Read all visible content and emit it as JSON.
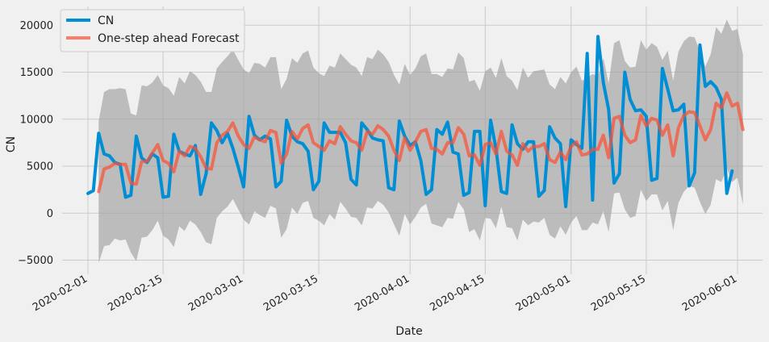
{
  "chart_data": {
    "type": "line",
    "title": "",
    "xlabel": "Date",
    "ylabel": "CN",
    "x_start": "2020-02-01",
    "xlim": [
      "2020-02-01",
      "2020-06-01"
    ],
    "ylim": [
      -6500,
      22000
    ],
    "x_ticks": [
      "2020-02-01",
      "2020-02-15",
      "2020-03-01",
      "2020-03-15",
      "2020-04-01",
      "2020-04-15",
      "2020-05-01",
      "2020-05-15",
      "2020-06-01"
    ],
    "y_ticks": [
      -5000,
      0,
      5000,
      10000,
      15000,
      20000
    ],
    "y_tick_labels": [
      "−5000",
      "0",
      "5000",
      "10000",
      "15000",
      "20000"
    ],
    "grid": true,
    "legend_position": "upper-left",
    "colors": {
      "actual": "#008fd5",
      "forecast": "#fc4f30",
      "band": "#a0a0a0"
    },
    "series": [
      {
        "name": "CN",
        "values": [
          2100,
          2400,
          8500,
          6300,
          6100,
          5400,
          5200,
          1700,
          1900,
          8200,
          5900,
          5400,
          6300,
          5900,
          1700,
          1800,
          8400,
          6600,
          6300,
          6100,
          7200,
          2000,
          4200,
          9600,
          8800,
          7500,
          8500,
          6900,
          4900,
          2800,
          10300,
          8300,
          7800,
          8200,
          7900,
          2800,
          3400,
          9900,
          8200,
          7600,
          7400,
          6600,
          2500,
          3400,
          9600,
          8600,
          8600,
          8600,
          7500,
          3600,
          3000,
          9600,
          8900,
          8000,
          7800,
          7700,
          2700,
          2500,
          9800,
          8200,
          7200,
          7600,
          5600,
          2000,
          2500,
          8900,
          8400,
          9700,
          6500,
          6300,
          1900,
          2200,
          8700,
          8700,
          800,
          9900,
          6900,
          2300,
          2100,
          9400,
          7400,
          6800,
          7600,
          7600,
          1800,
          2400,
          9200,
          8000,
          7400,
          700,
          7800,
          7300,
          6900,
          17000,
          1400,
          18800,
          13900,
          11000,
          3200,
          4200,
          15000,
          12100,
          10900,
          11000,
          10300,
          3500,
          3700,
          15400,
          13200,
          10900,
          11000,
          11600,
          2900,
          4300,
          17900,
          13500,
          14000,
          13400,
          12100,
          2100,
          4500
        ]
      },
      {
        "name": "One-step ahead Forecast",
        "values": [
          null,
          null,
          2300,
          4700,
          4900,
          5300,
          5200,
          5200,
          3200,
          3100,
          5500,
          5500,
          6400,
          7300,
          5600,
          5300,
          4400,
          6600,
          6100,
          7100,
          6900,
          6000,
          4800,
          4700,
          7500,
          8300,
          8700,
          9600,
          8200,
          7300,
          6900,
          8100,
          7800,
          7600,
          8800,
          8600,
          5300,
          6300,
          8700,
          7900,
          9000,
          9400,
          7500,
          7100,
          6700,
          7700,
          7400,
          9200,
          8400,
          7700,
          7500,
          6700,
          8700,
          8400,
          9300,
          8900,
          8200,
          6700,
          5600,
          8000,
          6700,
          7600,
          8700,
          8900,
          6900,
          6800,
          6300,
          7500,
          7500,
          9100,
          8400,
          6100,
          6200,
          5100,
          7300,
          7500,
          6300,
          8700,
          6600,
          6200,
          5100,
          7400,
          6600,
          7100,
          7100,
          7400,
          5700,
          5400,
          6500,
          5700,
          7100,
          7600,
          6200,
          6300,
          6800,
          6800,
          8300,
          5900,
          10100,
          10300,
          8300,
          7500,
          7800,
          10400,
          9300,
          10100,
          9900,
          8300,
          9400,
          6100,
          9100,
          10400,
          10800,
          10700,
          9300,
          7800,
          8900,
          11700,
          11200,
          12800,
          11400,
          11700,
          8900
        ]
      }
    ],
    "band": {
      "name": "forecast interval",
      "offset_up": [
        null,
        null,
        7500,
        8200,
        8300,
        7900,
        8100,
        8000,
        7400,
        7300,
        8100,
        8000,
        7500,
        7400,
        8000,
        8000,
        8100,
        7900,
        7700,
        8000,
        7800,
        8000,
        8100,
        8200,
        7900,
        7800,
        8000,
        7800,
        8100,
        8000,
        8000,
        7900,
        8100,
        7900,
        7800,
        8000,
        7900,
        8000,
        7800,
        8100,
        8000,
        7900,
        8000,
        7800,
        7900,
        8000,
        8100,
        7800,
        8000,
        8100,
        8000,
        7900,
        7900,
        8000,
        8100,
        8000,
        7900,
        8000,
        8100,
        7900,
        8000,
        7800,
        8000,
        8100,
        7900,
        8000,
        8200,
        7900,
        7800,
        8000,
        8100,
        7900,
        8000,
        7900,
        7800,
        8000,
        8100,
        7800,
        8000,
        7900,
        8000,
        8100,
        7800,
        8000,
        8100,
        7900,
        8000,
        7800,
        8000,
        8100,
        7900,
        8000,
        7900,
        8100,
        8000,
        7800,
        8200,
        7900,
        8000,
        8100,
        7900,
        8000,
        7800,
        8000,
        8100,
        8000,
        7800,
        8000,
        7900,
        8000,
        8100,
        7900,
        8000,
        8000,
        7900,
        7800,
        8000,
        8100,
        7900,
        7800,
        8000,
        7900,
        8000
      ],
      "offset_down": [
        null,
        null,
        7600,
        8200,
        8300,
        8000,
        8100,
        8000,
        7400,
        8200,
        8100,
        8000,
        8200,
        8100,
        8000,
        8100,
        8000,
        8000,
        8000,
        7900,
        8100,
        8000,
        7900,
        8000,
        8000,
        8100,
        8000,
        8100,
        7800,
        8000,
        8100,
        7900,
        8000,
        8100,
        8000,
        8100,
        7900,
        8000,
        8100,
        8000,
        7900,
        8100,
        8000,
        7900,
        8000,
        7800,
        8100,
        8000,
        7900,
        8100,
        8000,
        8000,
        8100,
        7900,
        8000,
        8000,
        8100,
        7900,
        8000,
        8100,
        7900,
        8000,
        8100,
        7900,
        8000,
        8100,
        7800,
        8000,
        8100,
        7900,
        8000,
        8100,
        7900,
        8000,
        7800,
        8100,
        7900,
        8000,
        8100,
        7800,
        8000,
        8100,
        7900,
        8000,
        8100,
        7900,
        8000,
        8100,
        7900,
        8000,
        8100,
        7900,
        8000,
        8100,
        7800,
        8000,
        8100,
        7900,
        8000,
        8100,
        7900,
        8000,
        8100,
        7900,
        8000,
        8100,
        7900,
        8000,
        8100,
        7900,
        8000,
        8100,
        7900,
        8000,
        8100,
        7900,
        8000,
        8100,
        7900,
        8000,
        8100,
        7900,
        8000
      ]
    }
  }
}
